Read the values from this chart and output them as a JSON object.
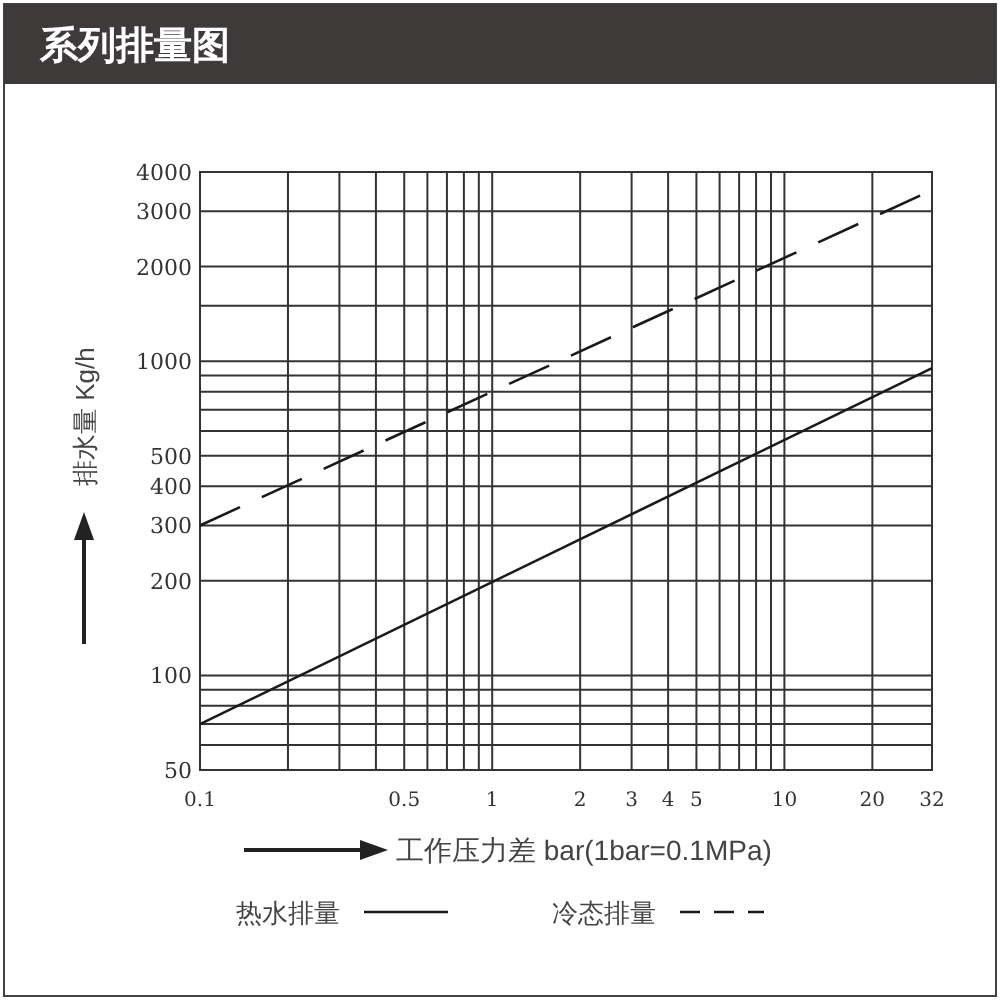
{
  "chart_data": {
    "type": "line",
    "title": "系列排量图",
    "xlabel": "工作压力差 bar(1bar=0.1MPa)",
    "ylabel": "排水量 Kg/h",
    "log": "xy",
    "x": [
      0.1,
      32
    ],
    "xlim": [
      0.1,
      32
    ],
    "ylim": [
      50,
      4000
    ],
    "xticks": [
      0.1,
      {
        "value": 0.2,
        "label": null
      },
      {
        "value": 0.3,
        "label": null
      },
      {
        "value": 0.4,
        "label": null
      },
      {
        "value": 0.5,
        "label": "0.5"
      },
      {
        "value": 0.6,
        "label": null
      },
      {
        "value": 0.7,
        "label": null
      },
      {
        "value": 0.8,
        "label": null
      },
      {
        "value": 0.9,
        "label": null
      },
      1,
      2,
      3,
      4,
      5,
      {
        "value": 6,
        "label": null
      },
      {
        "value": 7,
        "label": null
      },
      {
        "value": 8,
        "label": null
      },
      {
        "value": 9,
        "label": null
      },
      10,
      20,
      32
    ],
    "yticks": [
      50,
      {
        "value": 60,
        "label": null
      },
      {
        "value": 70,
        "label": null
      },
      {
        "value": 80,
        "label": null
      },
      {
        "value": 90,
        "label": null
      },
      100,
      200,
      300,
      400,
      500,
      {
        "value": 600,
        "label": null
      },
      {
        "value": 700,
        "label": null
      },
      {
        "value": 800,
        "label": null
      },
      {
        "value": 900,
        "label": null
      },
      1000,
      {
        "value": 1500,
        "label": null
      },
      2000,
      3000,
      4000
    ],
    "grid": true,
    "legend": "bottom",
    "series": [
      {
        "name": "热水排量",
        "color": "#1a1a1a",
        "values": [
          70,
          950
        ],
        "line_style": "solid"
      },
      {
        "name": "冷态排量",
        "color": "#1a1a1a",
        "values": [
          300,
          3500
        ],
        "line_style": "dashed"
      }
    ]
  }
}
